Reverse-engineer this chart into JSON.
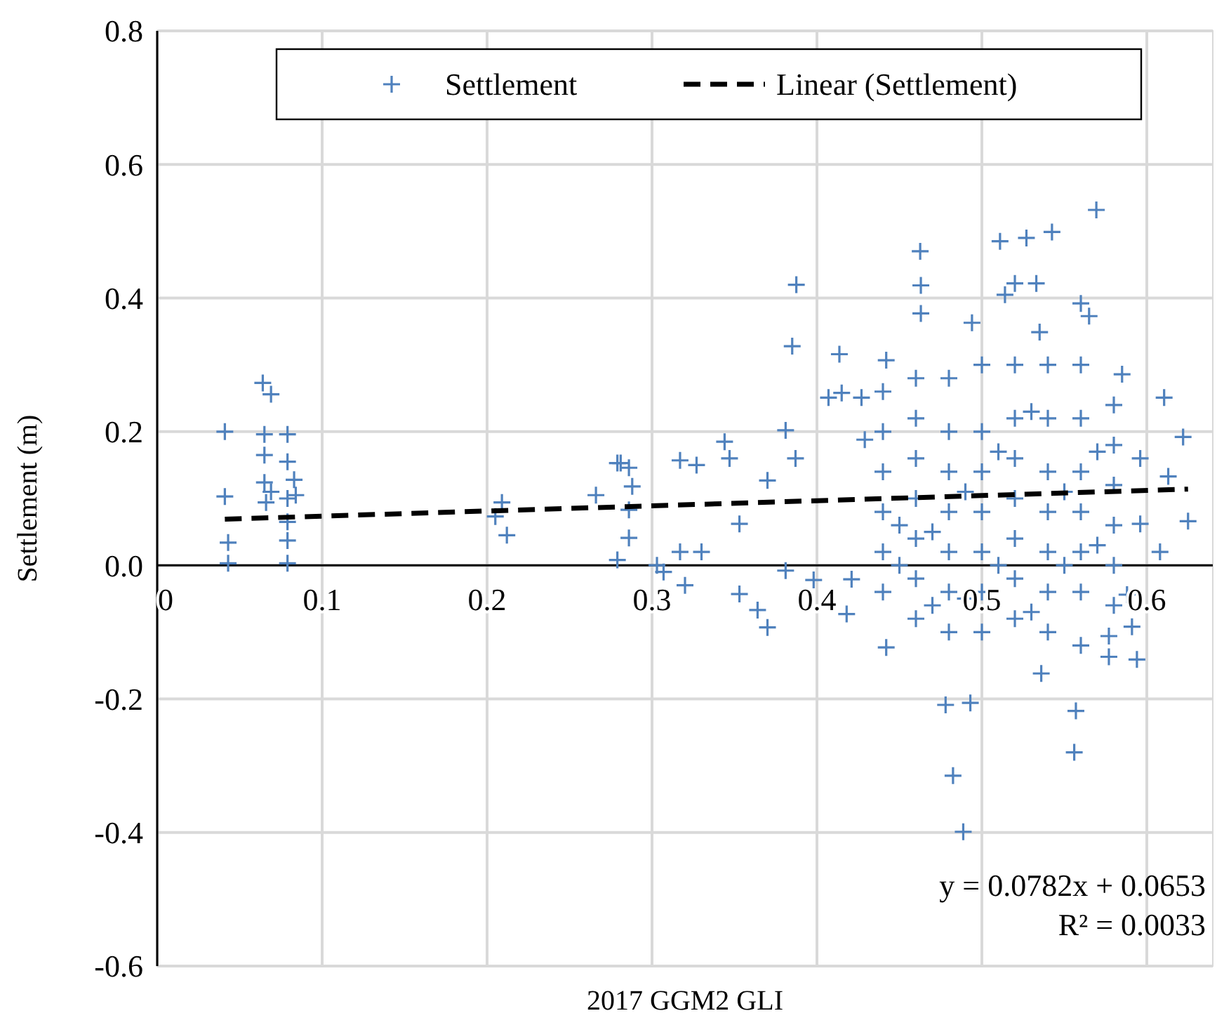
{
  "chart_data": {
    "type": "scatter",
    "xlabel": "2017 GGM2 GLI",
    "ylabel": "Settlement (m)",
    "xlim": [
      0,
      0.64
    ],
    "xticks": [
      0,
      0.1,
      0.2,
      0.3,
      0.4,
      0.5,
      0.6
    ],
    "ylim": [
      -0.6,
      0.8
    ],
    "yticks": [
      -0.6,
      -0.4,
      -0.2,
      {
        "value": 0,
        "label": "0.0"
      },
      0.2,
      0.4,
      0.6,
      0.8
    ],
    "grid": true,
    "legend": "top",
    "marker": "cross",
    "annotations": [
      "y = 0.0782x + 0.0653",
      "R² = 0.0033"
    ],
    "series": [
      {
        "name": "Settlement",
        "color": "#4f81bd",
        "x": [
          0.041,
          0.041,
          0.043,
          0.043,
          0.064,
          0.069,
          0.065,
          0.065,
          0.065,
          0.069,
          0.066,
          0.079,
          0.079,
          0.083,
          0.079,
          0.079,
          0.079,
          0.079,
          0.084,
          0.209,
          0.205,
          0.212,
          0.266,
          0.279,
          0.279,
          0.286,
          0.286,
          0.286,
          0.288,
          0.317,
          0.307,
          0.32,
          0.317,
          0.344,
          0.347,
          0.353,
          0.353,
          0.327,
          0.33,
          0.303,
          0.281,
          0.381,
          0.387,
          0.381,
          0.398,
          0.407,
          0.415,
          0.427,
          0.421,
          0.418,
          0.429,
          0.37,
          0.3875,
          0.4626,
          0.511,
          0.527,
          0.5425,
          0.5694,
          0.4136,
          0.385,
          0.6105,
          0.622,
          0.625,
          0.4887,
          0.4825,
          0.556,
          0.478,
          0.493,
          0.442,
          0.594,
          0.37,
          0.364,
          0.557,
          0.536,
          0.577,
          0.463,
          0.463,
          0.52,
          0.533,
          0.56,
          0.565,
          0.494,
          0.535,
          0.442,
          0.585,
          0.514,
          0.596,
          0.596,
          0.608,
          0.588,
          0.591,
          0.577,
          0.613,
          0.44,
          0.44,
          0.44,
          0.44,
          0.44,
          0.44,
          0.46,
          0.46,
          0.46,
          0.46,
          0.46,
          0.46,
          0.46,
          0.48,
          0.48,
          0.48,
          0.48,
          0.48,
          0.48,
          0.48,
          0.5,
          0.5,
          0.5,
          0.5,
          0.5,
          0.5,
          0.5,
          0.52,
          0.52,
          0.52,
          0.52,
          0.52,
          0.52,
          0.52,
          0.54,
          0.54,
          0.54,
          0.54,
          0.54,
          0.54,
          0.54,
          0.56,
          0.56,
          0.56,
          0.56,
          0.56,
          0.56,
          0.56,
          0.58,
          0.58,
          0.58,
          0.58,
          0.58,
          0.58,
          0.45,
          0.47,
          0.49,
          0.51,
          0.53,
          0.55,
          0.57,
          0.45,
          0.47,
          0.49,
          0.51,
          0.53,
          0.55,
          0.57
        ],
        "values": [
          0.2,
          0.103,
          0.034,
          0.003,
          0.273,
          0.256,
          0.196,
          0.165,
          0.124,
          0.11,
          0.094,
          0.196,
          0.155,
          0.128,
          0.1,
          0.065,
          0.037,
          0.003,
          0.105,
          0.094,
          0.073,
          0.045,
          0.105,
          0.153,
          0.008,
          0.146,
          0.083,
          0.041,
          0.118,
          0.157,
          -0.01,
          -0.03,
          0.02,
          0.185,
          0.16,
          0.062,
          -0.043,
          0.15,
          0.02,
          0.0,
          0.153,
          0.202,
          0.16,
          -0.008,
          -0.022,
          0.251,
          0.258,
          0.251,
          -0.021,
          -0.073,
          0.188,
          0.127,
          0.42,
          0.47,
          0.485,
          0.49,
          0.499,
          0.532,
          0.316,
          0.328,
          0.251,
          0.192,
          0.066,
          -0.399,
          -0.315,
          -0.28,
          -0.209,
          -0.206,
          -0.123,
          -0.141,
          -0.093,
          -0.067,
          -0.218,
          -0.162,
          -0.137,
          0.419,
          0.377,
          0.422,
          0.422,
          0.392,
          0.373,
          0.363,
          0.349,
          0.307,
          0.286,
          0.405,
          0.16,
          0.062,
          0.02,
          -0.044,
          -0.092,
          -0.106,
          0.133,
          -0.04,
          0.02,
          0.08,
          0.14,
          0.2,
          0.26,
          -0.08,
          -0.02,
          0.04,
          0.1,
          0.16,
          0.22,
          0.28,
          -0.1,
          -0.04,
          0.02,
          0.08,
          0.14,
          0.2,
          0.28,
          -0.1,
          -0.04,
          0.02,
          0.08,
          0.14,
          0.2,
          0.3,
          -0.08,
          -0.02,
          0.04,
          0.1,
          0.16,
          0.22,
          0.3,
          -0.1,
          -0.04,
          0.02,
          0.08,
          0.14,
          0.22,
          0.3,
          -0.12,
          -0.04,
          0.02,
          0.08,
          0.14,
          0.22,
          0.3,
          -0.06,
          0.0,
          0.06,
          0.12,
          0.18,
          0.24,
          0.0,
          0.05,
          0.11,
          0.17,
          0.23,
          0.11,
          0.17,
          0.06,
          -0.06,
          -0.05,
          0.0,
          -0.07,
          0.0,
          0.03
        ]
      },
      {
        "name": "Linear (Settlement)",
        "type": "line",
        "color": "#000000",
        "marker": "none",
        "line_style": "dashed",
        "x": [
          0.041,
          0.625
        ],
        "values": [
          0.069,
          0.114
        ]
      }
    ]
  }
}
